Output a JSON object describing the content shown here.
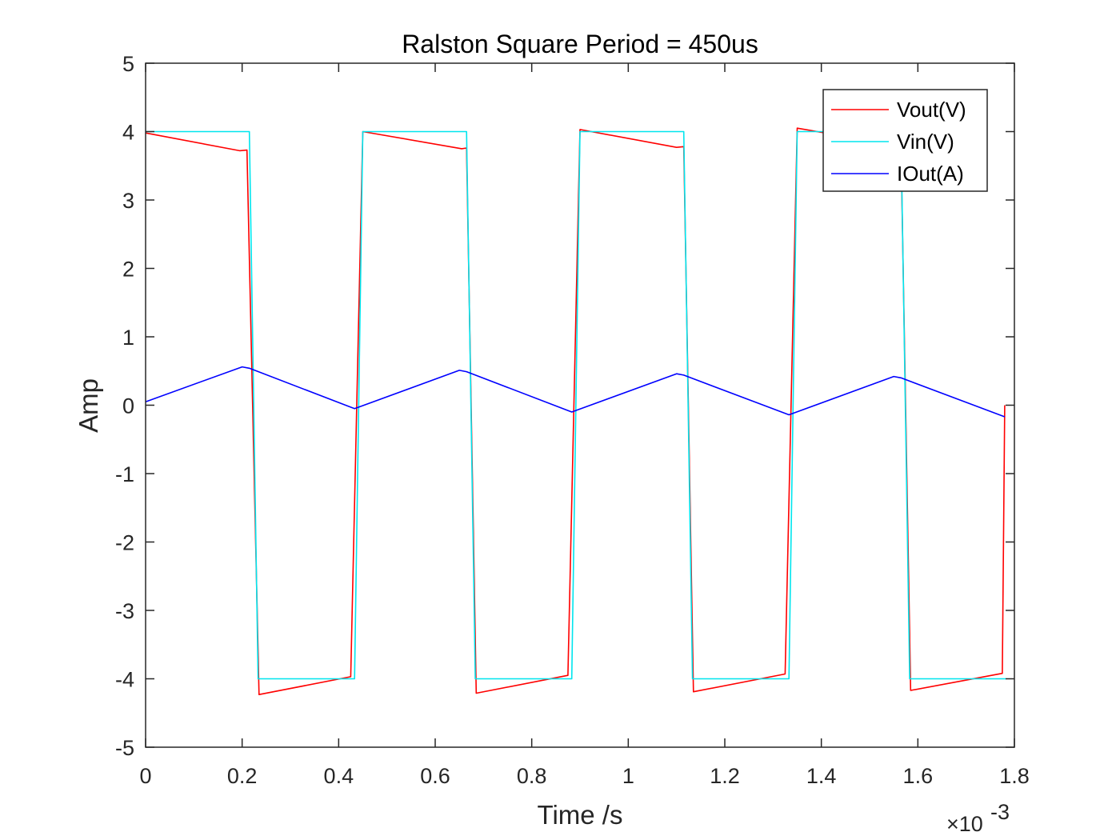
{
  "chart_data": {
    "type": "line",
    "title": "Ralston Square Period = 450us",
    "xlabel": "Time /s",
    "ylabel": "Amp",
    "x_exponent_label": "×10",
    "x_exponent_power": "-3",
    "xlim": [
      0,
      1.8
    ],
    "ylim": [
      -5,
      5
    ],
    "x_scale_factor": 0.001,
    "x_ticks": [
      0,
      0.2,
      0.4,
      0.6,
      0.8,
      1,
      1.2,
      1.4,
      1.6,
      1.8
    ],
    "x_tick_labels": [
      "0",
      "0.2",
      "0.4",
      "0.6",
      "0.8",
      "1",
      "1.2",
      "1.4",
      "1.6",
      "1.8"
    ],
    "y_ticks": [
      5,
      4,
      3,
      2,
      1,
      0,
      -1,
      -2,
      -3,
      -4,
      -5
    ],
    "y_tick_labels": [
      "5",
      "4",
      "3",
      "2",
      "1",
      "0",
      "-1",
      "-2",
      "-3",
      "-4",
      "-5"
    ],
    "grid": false,
    "box": true,
    "legend_position": "top-right",
    "series": [
      {
        "name": "Vout(V)",
        "color": "#ff0000",
        "x": [
          0,
          0.195,
          0.21,
          0.235,
          0.425,
          0.45,
          0.655,
          0.665,
          0.685,
          0.875,
          0.9,
          1.1,
          1.115,
          1.135,
          1.325,
          1.35,
          1.555,
          1.565,
          1.585,
          1.775,
          1.78
        ],
        "y": [
          3.98,
          3.72,
          3.73,
          -4.23,
          -3.97,
          4.0,
          3.75,
          3.76,
          -4.21,
          -3.95,
          4.03,
          3.77,
          3.78,
          -4.19,
          -3.93,
          4.05,
          3.8,
          3.81,
          -4.17,
          -3.92,
          0.0
        ]
      },
      {
        "name": "Vin(V)",
        "color": "#00e5ee",
        "x": [
          0,
          0.215,
          0.233,
          0.433,
          0.45,
          0.665,
          0.683,
          0.883,
          0.9,
          1.115,
          1.133,
          1.333,
          1.35,
          1.565,
          1.583,
          1.783
        ],
        "y": [
          4.0,
          4.0,
          -4.0,
          -4.0,
          4.0,
          4.0,
          -4.0,
          -4.0,
          4.0,
          4.0,
          -4.0,
          -4.0,
          4.0,
          4.0,
          -4.0,
          -4.0
        ]
      },
      {
        "name": "IOut(A)",
        "color": "#0000ff",
        "x": [
          0,
          0.2,
          0.215,
          0.433,
          0.65,
          0.665,
          0.883,
          1.1,
          1.115,
          1.333,
          1.55,
          1.565,
          1.78
        ],
        "y": [
          0.05,
          0.56,
          0.54,
          -0.05,
          0.51,
          0.49,
          -0.1,
          0.46,
          0.44,
          -0.14,
          0.42,
          0.4,
          -0.17
        ]
      }
    ]
  }
}
